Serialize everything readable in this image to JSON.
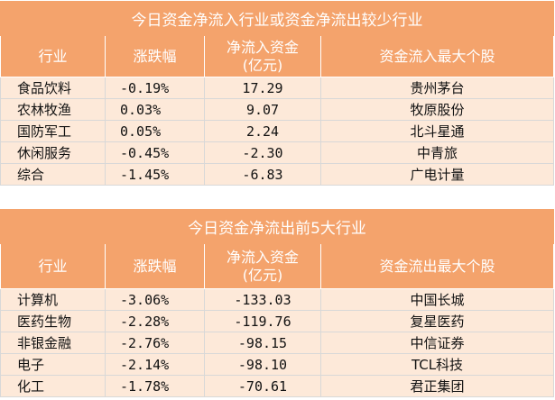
{
  "inflow_table": {
    "title": "今日资金净流入行业或资金净流出较少行业",
    "headers": [
      "行业",
      "涨跌幅",
      "净流入资金\n(亿元)",
      "资金流入最大个股"
    ],
    "header_amount_line1": "净流入资金",
    "header_amount_line2": "(亿元)",
    "rows": [
      {
        "industry": "食品饮料",
        "change": "-0.19%",
        "amount": "17.29",
        "stock": "贵州茅台"
      },
      {
        "industry": "农林牧渔",
        "change": "0.03%",
        "amount": "9.07",
        "stock": "牧原股份"
      },
      {
        "industry": "国防军工",
        "change": "0.05%",
        "amount": "2.24",
        "stock": "北斗星通"
      },
      {
        "industry": "休闲服务",
        "change": "-0.45%",
        "amount": "-2.30",
        "stock": "中青旅"
      },
      {
        "industry": "综合",
        "change": "-1.45%",
        "amount": "-6.83",
        "stock": "广电计量"
      }
    ]
  },
  "outflow_table": {
    "title": "今日资金净流出前5大行业",
    "headers": [
      "行业",
      "涨跌幅",
      "净流入资金\n(亿元)",
      "资金流出最大个股"
    ],
    "header_amount_line1": "净流入资金",
    "header_amount_line2": "(亿元)",
    "rows": [
      {
        "industry": "计算机",
        "change": "-3.06%",
        "amount": "-133.03",
        "stock": "中国长城"
      },
      {
        "industry": "医药生物",
        "change": "-2.28%",
        "amount": "-119.76",
        "stock": "复星医药"
      },
      {
        "industry": "非银金融",
        "change": "-2.76%",
        "amount": "-98.15",
        "stock": "中信证券"
      },
      {
        "industry": "电子",
        "change": "-2.14%",
        "amount": "-98.10",
        "stock": "TCL科技"
      },
      {
        "industry": "化工",
        "change": "-1.78%",
        "amount": "-70.61",
        "stock": "君正集团"
      }
    ]
  },
  "colors": {
    "header_bg": "#f4a36c",
    "row_bg": "#fde9d9",
    "header_text": "#ffffff"
  }
}
